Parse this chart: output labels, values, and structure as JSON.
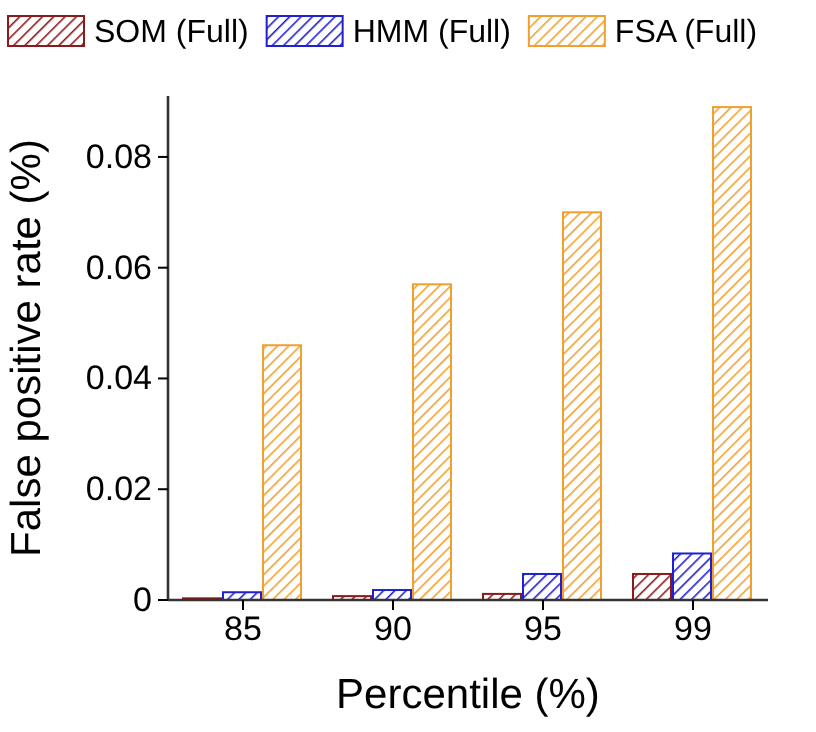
{
  "chart_data": {
    "type": "bar",
    "xlabel": "Percentile (%)",
    "ylabel": "False positive rate (%)",
    "categories": [
      "85",
      "90",
      "95",
      "99"
    ],
    "series": [
      {
        "name": "SOM (Full)",
        "color": "#8b1a1a",
        "values": [
          0.0003,
          0.0007,
          0.0011,
          0.0047
        ]
      },
      {
        "name": "HMM (Full)",
        "color": "#2020d0",
        "values": [
          0.0014,
          0.0018,
          0.0047,
          0.0084
        ]
      },
      {
        "name": "FSA (Full)",
        "color": "#f0a030",
        "values": [
          0.046,
          0.057,
          0.07,
          0.089
        ]
      }
    ],
    "ylim": [
      0,
      0.091
    ],
    "yticks": [
      {
        "value": 0,
        "label": "0"
      },
      0.02,
      0.04,
      0.06,
      0.08
    ],
    "legend": "top",
    "grid": false
  }
}
